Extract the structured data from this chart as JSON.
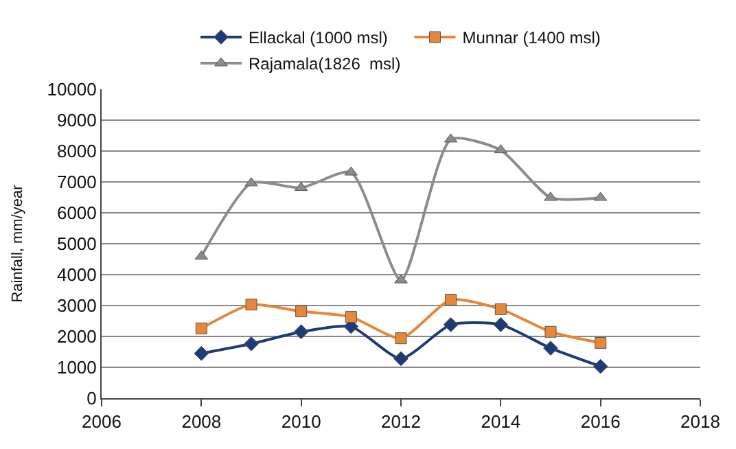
{
  "chart_data": {
    "type": "line",
    "ylabel": "Rainfall, mm/year",
    "x": [
      2008,
      2009,
      2010,
      2011,
      2012,
      2013,
      2014,
      2015,
      2016
    ],
    "series": [
      {
        "name": "Ellackal (1000 msl)",
        "color": "#1f3a78",
        "marker": "diamond",
        "values": [
          1450,
          1760,
          2150,
          2320,
          1280,
          2380,
          2380,
          1620,
          1030
        ]
      },
      {
        "name": "Munnar (1400 msl)",
        "color": "#e6873a",
        "marker": "square",
        "values": [
          2260,
          3030,
          2810,
          2630,
          1940,
          3190,
          2880,
          2150,
          1790
        ]
      },
      {
        "name": "Rajamala(1826  msl)",
        "color": "#8c8c8c",
        "marker": "triangle",
        "values": [
          4590,
          6960,
          6810,
          7310,
          3820,
          8380,
          8030,
          6490,
          6490
        ]
      }
    ],
    "xlim": [
      2006,
      2018
    ],
    "xticks": [
      2006,
      2008,
      2010,
      2012,
      2014,
      2016,
      2018
    ],
    "ylim": [
      0,
      10000
    ],
    "yticks": [
      0,
      1000,
      2000,
      3000,
      4000,
      5000,
      6000,
      7000,
      8000,
      9000,
      10000
    ],
    "grid": "y",
    "legend": "top",
    "line_style": "solid"
  }
}
